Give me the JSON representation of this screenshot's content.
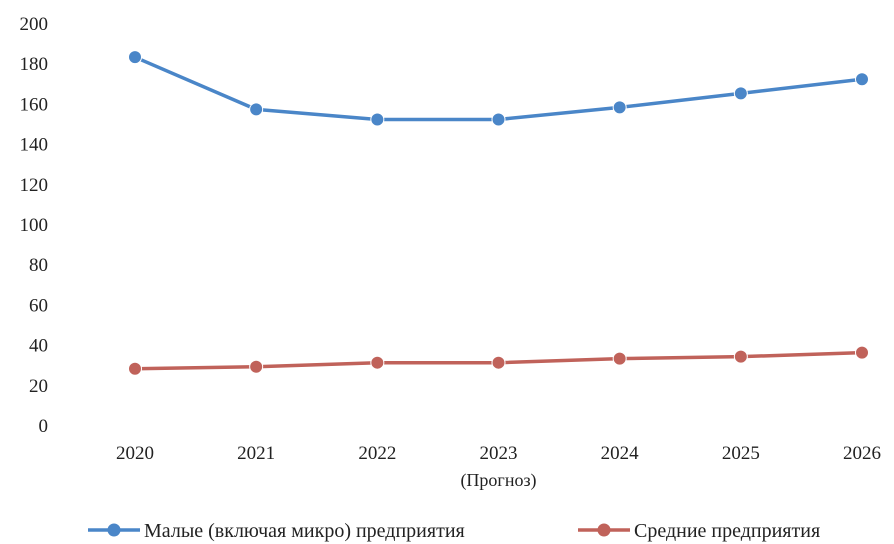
{
  "chart_data": {
    "type": "line",
    "title": "",
    "xlabel": "",
    "ylabel": "",
    "categories": [
      "2020",
      "2021",
      "2022",
      "2023",
      "2024",
      "2025",
      "2026"
    ],
    "category_notes": [
      "",
      "",
      "",
      "(Прогноз)",
      "",
      "",
      ""
    ],
    "ylim": [
      0,
      200
    ],
    "yticks": [
      0,
      20,
      40,
      60,
      80,
      100,
      120,
      140,
      160,
      180,
      200
    ],
    "grid": false,
    "legend_position": "bottom",
    "series": [
      {
        "name": "Малые (включая микро) предприятия",
        "color": "#4a86c8",
        "values": [
          183,
          157,
          152,
          152,
          158,
          165,
          172
        ]
      },
      {
        "name": "Средние предприятия",
        "color": "#c0625a",
        "values": [
          28,
          29,
          31,
          31,
          33,
          34,
          36
        ]
      }
    ]
  }
}
